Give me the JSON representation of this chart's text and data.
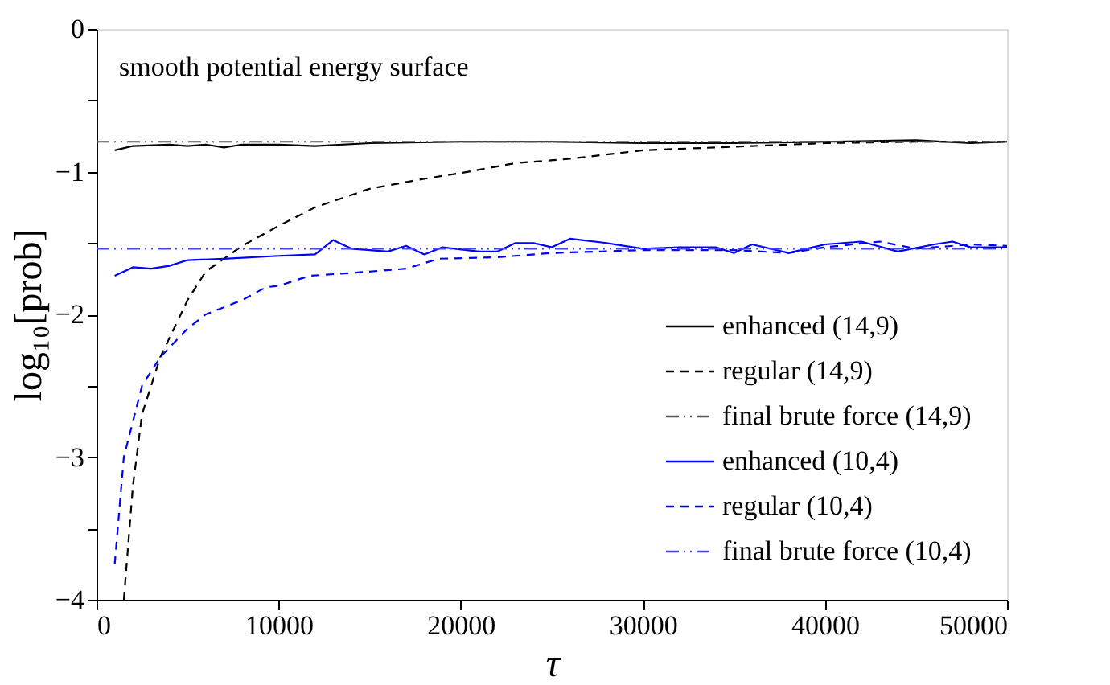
{
  "chart_data": {
    "type": "line",
    "xlabel": "τ",
    "ylabel": "log₁₀[prob]",
    "annotations": [
      "smooth potential energy surface"
    ],
    "xlim": [
      0,
      50000
    ],
    "xticks": [
      0,
      10000,
      20000,
      30000,
      40000,
      50000
    ],
    "ylim": [
      -4,
      0
    ],
    "yticks": [
      -4,
      {
        "value": -3.5,
        "label": null
      },
      -3,
      {
        "value": -2.5,
        "label": null
      },
      -2,
      {
        "value": -1.5,
        "label": null
      },
      -1,
      {
        "value": -0.5,
        "label": null
      },
      0
    ],
    "grid": false,
    "legend": "bottom right",
    "marker": "none",
    "series": [
      {
        "name": "enhanced (14,9)",
        "color": "#000000",
        "line_style": "solid",
        "x": [
          1000,
          2000,
          4000,
          5000,
          6000,
          7000,
          8000,
          10000,
          12000,
          15000,
          20000,
          25000,
          30000,
          35000,
          40000,
          45000,
          48000,
          50000
        ],
        "values": [
          -0.85,
          -0.82,
          -0.81,
          -0.82,
          -0.81,
          -0.83,
          -0.81,
          -0.81,
          -0.82,
          -0.8,
          -0.79,
          -0.79,
          -0.8,
          -0.8,
          -0.79,
          -0.78,
          -0.8,
          -0.79
        ]
      },
      {
        "name": "regular (14,9)",
        "color": "#000000",
        "line_style": "dashed",
        "x": [
          1500,
          2000,
          2500,
          3500,
          5000,
          6000,
          8000,
          10000,
          12000,
          15000,
          18000,
          20000,
          23000,
          26000,
          28000,
          30000,
          36000,
          40000,
          45000,
          50000
        ],
        "values": [
          -4,
          -3.2,
          -2.7,
          -2.3,
          -1.9,
          -1.7,
          -1.52,
          -1.38,
          -1.25,
          -1.12,
          -1.05,
          -1.01,
          -0.94,
          -0.91,
          -0.88,
          -0.85,
          -0.82,
          -0.8,
          -0.79,
          -0.79
        ]
      },
      {
        "name": "final brute force (14,9)",
        "color": "#555555",
        "line_style": "dashdotdot",
        "x": [
          0,
          50000
        ],
        "values": [
          -0.79,
          -0.79
        ]
      },
      {
        "name": "enhanced (10,4)",
        "color": "#0000ff",
        "line_style": "solid",
        "x": [
          1000,
          2000,
          3000,
          4000,
          5000,
          7000,
          10000,
          12000,
          13000,
          14000,
          16000,
          17000,
          18000,
          19000,
          21000,
          22000,
          23000,
          24000,
          25000,
          26000,
          28000,
          30000,
          32000,
          34000,
          35000,
          36000,
          38000,
          40000,
          42000,
          44000,
          46000,
          47000,
          48000,
          50000
        ],
        "values": [
          -1.73,
          -1.67,
          -1.68,
          -1.66,
          -1.62,
          -1.61,
          -1.59,
          -1.58,
          -1.48,
          -1.54,
          -1.56,
          -1.52,
          -1.58,
          -1.53,
          -1.56,
          -1.56,
          -1.5,
          -1.5,
          -1.53,
          -1.47,
          -1.5,
          -1.54,
          -1.53,
          -1.53,
          -1.57,
          -1.51,
          -1.57,
          -1.51,
          -1.49,
          -1.56,
          -1.51,
          -1.49,
          -1.53,
          -1.53
        ]
      },
      {
        "name": "regular (10,4)",
        "color": "#0000ff",
        "line_style": "dashed",
        "x": [
          1000,
          1500,
          2500,
          3500,
          5000,
          6000,
          8000,
          9300,
          10000,
          11700,
          14000,
          17000,
          18800,
          22000,
          25000,
          30000,
          35000,
          38000,
          40000,
          43000,
          45000,
          48000,
          50000
        ],
        "values": [
          -3.75,
          -3.0,
          -2.5,
          -2.3,
          -2.1,
          -2.0,
          -1.9,
          -1.81,
          -1.8,
          -1.73,
          -1.71,
          -1.68,
          -1.61,
          -1.6,
          -1.57,
          -1.55,
          -1.55,
          -1.57,
          -1.53,
          -1.49,
          -1.54,
          -1.51,
          -1.52
        ]
      },
      {
        "name": "final brute force (10,4)",
        "color": "#4444ff",
        "line_style": "dashdotdot",
        "x": [
          0,
          50000
        ],
        "values": [
          -1.54,
          -1.54
        ]
      }
    ]
  }
}
